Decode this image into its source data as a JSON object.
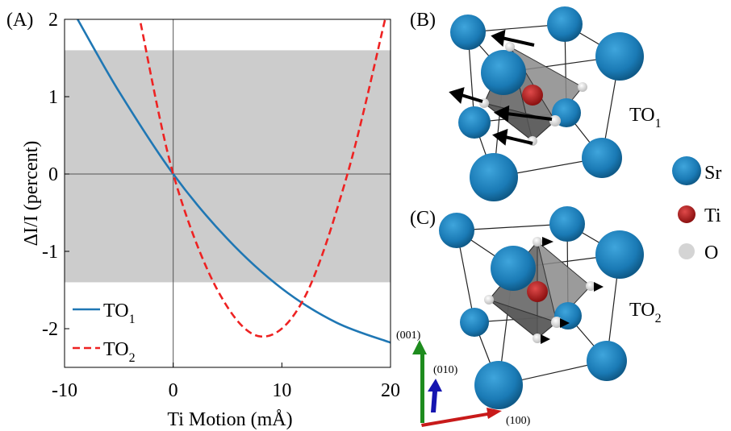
{
  "panels": {
    "a": "(A)",
    "b": "(B)",
    "c": "(C)"
  },
  "chart_data": {
    "type": "line",
    "xlabel": "Ti Motion  (mÅ)",
    "ylabel": "ΔI/I (percent)",
    "xlim": [
      -10,
      20
    ],
    "ylim": [
      -2.5,
      2
    ],
    "xticks": [
      -10,
      0,
      10,
      20
    ],
    "yticks": [
      -2,
      -1,
      0,
      1,
      2
    ],
    "xtick_labels": [
      "-10",
      "0",
      "10",
      "20"
    ],
    "ytick_labels": [
      "-2",
      "-1",
      "0",
      "1",
      "2"
    ],
    "shaded_band": [
      -1.4,
      1.6
    ],
    "reference_lines": {
      "x": 0,
      "y": 0
    },
    "legend_position": "bottom-left",
    "series": [
      {
        "name": "TO",
        "subscript": "1",
        "color": "#1f77b4",
        "style": "solid",
        "x": [
          -8.8,
          -5,
          0,
          5,
          10,
          15,
          20
        ],
        "y": [
          2.0,
          1.07,
          0.0,
          -0.84,
          -1.48,
          -1.92,
          -2.18
        ]
      },
      {
        "name": "TO",
        "subscript": "2",
        "color": "#ee2222",
        "style": "dashed",
        "x": [
          -3,
          0,
          4,
          8,
          12,
          16,
          19.5
        ],
        "y": [
          1.95,
          0.0,
          -1.48,
          -2.1,
          -1.62,
          -0.02,
          2.0
        ]
      }
    ]
  },
  "structures": {
    "b_label": "TO",
    "b_sub": "1",
    "c_label": "TO",
    "c_sub": "2"
  },
  "atom_legend": [
    {
      "label": "Sr",
      "color": "#1a7ab5"
    },
    {
      "label": "Ti",
      "color": "#a11a1a"
    },
    {
      "label": "O",
      "color": "#d4d4d4"
    }
  ],
  "axes3d": {
    "z": "(001)",
    "y": "(010)",
    "x": "(100)"
  }
}
